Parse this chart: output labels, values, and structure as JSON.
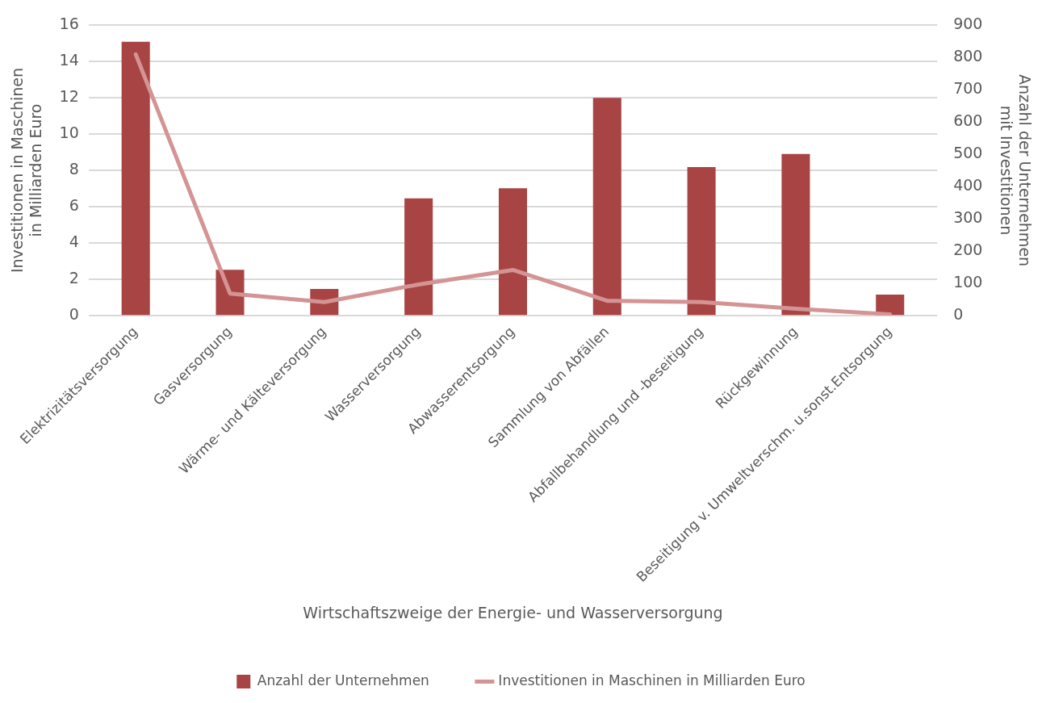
{
  "chart_data": {
    "type": "bar",
    "xlabel": "Wirtschaftszweige der Energie- und Wasserversorgung",
    "ylabel": "Investitionen in Maschinen\nin Milliarden Euro",
    "y2label": "Anzahl der Unternehmen\nmit Investitionen",
    "categories": [
      "Elektrizitätsversorgung",
      "Gasversorgung",
      "Wärme- und Kälteversorgung",
      "Wasserversorgung",
      "Abwasserentsorgung",
      "Sammlung von Abfällen",
      "Abfallbehandlung und -beseitigung",
      "Rückgewinnung",
      "Beseitigung v. Umweltverschm. u.sonst.Entsorgung"
    ],
    "series": [
      {
        "name": "Anzahl der Unternehmen",
        "axis": "y2",
        "color": "#a84444",
        "values": [
          849,
          141,
          82,
          363,
          394,
          675,
          460,
          501,
          64
        ]
      },
      {
        "name": "Investitionen in Maschinen in Milliarden Euro",
        "type": "line",
        "axis": "y",
        "color": "#d49494",
        "values": [
          14.4,
          1.2,
          0.73,
          1.7,
          2.5,
          0.8,
          0.73,
          0.36,
          0.05
        ]
      }
    ],
    "ylim": [
      0,
      16
    ],
    "yticks": [
      0,
      2,
      4,
      6,
      8,
      10,
      12,
      14,
      16
    ],
    "y2lim": [
      0,
      900
    ],
    "y2ticks": [
      0,
      100,
      200,
      300,
      400,
      500,
      600,
      700,
      800,
      900
    ],
    "grid": "y",
    "legend": "bottom",
    "marker": "none"
  }
}
